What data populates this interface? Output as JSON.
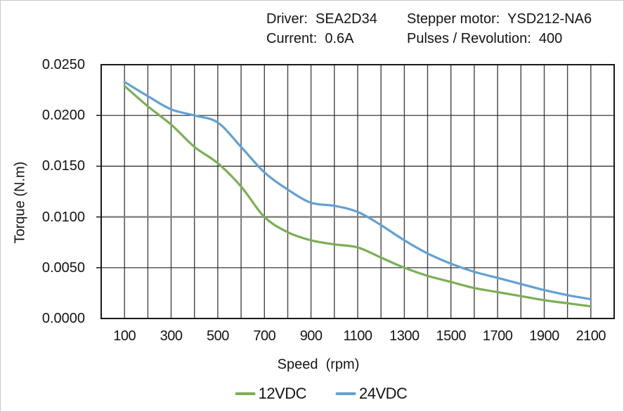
{
  "window": {
    "bg": "#ffffff",
    "border_color": "#c9c9c9"
  },
  "header": {
    "line1_left": "Driver:  SEA2D34",
    "line1_right": "Stepper motor:  YSD212-NA6",
    "line2_left": "Current:  0.6A",
    "line2_right": "Pulses / Revolution:  400"
  },
  "chart_data": {
    "type": "line",
    "title": "",
    "xlabel": "Speed  (rpm)",
    "ylabel": "Torque (N.m)",
    "xlim": [
      0,
      2200
    ],
    "ylim": [
      0,
      0.025
    ],
    "grid": true,
    "x_gridline_step": 100,
    "emphasis_gridline_y": 0.01,
    "legend_position": "bottom",
    "x_tick_labels": [
      "100",
      "300",
      "500",
      "700",
      "900",
      "1100",
      "1300",
      "1500",
      "1700",
      "1900",
      "2100"
    ],
    "y_tick_labels": [
      "0.0000",
      "0.0050",
      "0.0100",
      "0.0150",
      "0.0200",
      "0.0250"
    ],
    "x": [
      100,
      200,
      300,
      400,
      500,
      600,
      700,
      800,
      900,
      1000,
      1100,
      1200,
      1300,
      1400,
      1500,
      1600,
      1700,
      1800,
      1900,
      2000,
      2100
    ],
    "series": [
      {
        "name": "12VDC",
        "color": "#7BAF55",
        "values": [
          0.0229,
          0.0209,
          0.0191,
          0.0169,
          0.0153,
          0.013,
          0.01,
          0.0085,
          0.0077,
          0.0073,
          0.007,
          0.006,
          0.005,
          0.0042,
          0.0036,
          0.003,
          0.0026,
          0.0022,
          0.0018,
          0.0015,
          0.0012
        ]
      },
      {
        "name": "24VDC",
        "color": "#63A0D4",
        "values": [
          0.0233,
          0.0219,
          0.0206,
          0.02,
          0.0193,
          0.0169,
          0.0144,
          0.0127,
          0.0114,
          0.0111,
          0.0105,
          0.0092,
          0.0077,
          0.0064,
          0.0054,
          0.0046,
          0.004,
          0.0034,
          0.0028,
          0.0023,
          0.0019
        ]
      }
    ],
    "axis_colors": {
      "border": "#1a1a1a",
      "grid": "#454545",
      "grid_h": "#262626",
      "emphasis": "#7f7f7f"
    }
  }
}
